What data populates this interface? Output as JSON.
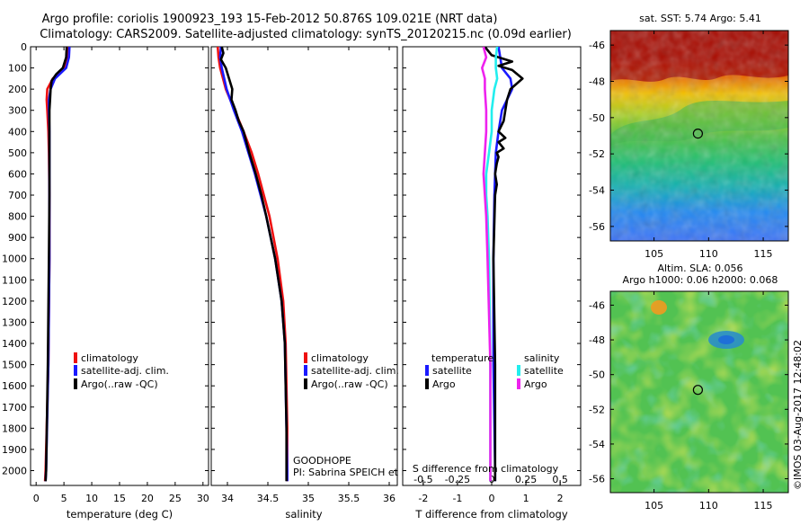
{
  "figure": {
    "title_line1": "Argo profile: coriolis 1900923_193 15-Feb-2012 50.876S 109.021E (NRT data)",
    "title_line2": "Climatology: CARS2009. Satellite-adjusted climatology: synTS_20120215.nc (0.09d earlier)",
    "side_label": "©IMOS 03-Aug-2017 12:48:02",
    "goodhope_label": "GOODHOPE",
    "pi_label": "PI: Sabrina SPEICH et Michel ARHAN"
  },
  "colors": {
    "climatology": "#ee1111",
    "satellite": "#1a1aff",
    "argo": "#000000",
    "salinity_satellite": "#22eeee",
    "salinity_argo": "#ee22ee"
  },
  "chart_data": [
    {
      "id": "temperature",
      "type": "line",
      "xlabel": "temperature (deg C)",
      "ylabel": "",
      "xlim": [
        -1,
        31
      ],
      "ylim": [
        2070,
        0
      ],
      "xticks": [
        0,
        5,
        10,
        15,
        20,
        25,
        30
      ],
      "yticks": [
        0,
        100,
        200,
        300,
        400,
        500,
        600,
        700,
        800,
        900,
        1000,
        1100,
        1200,
        1300,
        1400,
        1500,
        1600,
        1700,
        1800,
        1900,
        2000
      ],
      "legend": [
        "climatology",
        "satellite-adj. clim.",
        "Argo(..raw -QC)"
      ],
      "series": [
        {
          "name": "climatology",
          "depth": [
            0,
            50,
            100,
            150,
            200,
            250,
            300,
            400,
            500,
            700,
            1000,
            1500,
            2000,
            2050
          ],
          "values": [
            5.8,
            5.7,
            5.2,
            3.0,
            2.0,
            1.9,
            2.0,
            2.2,
            2.3,
            2.4,
            2.4,
            2.2,
            1.7,
            1.6
          ]
        },
        {
          "name": "satellite",
          "depth": [
            0,
            50,
            100,
            150,
            200,
            250,
            300,
            400,
            500,
            700,
            1000,
            1500,
            2000,
            2050
          ],
          "values": [
            6.0,
            5.9,
            5.4,
            3.4,
            2.6,
            2.3,
            2.3,
            2.4,
            2.4,
            2.4,
            2.4,
            2.2,
            1.8,
            1.7
          ]
        },
        {
          "name": "Argo",
          "depth": [
            0,
            50,
            100,
            130,
            160,
            200,
            250,
            300,
            400,
            500,
            700,
            1000,
            1500,
            2000,
            2050
          ],
          "values": [
            5.5,
            5.4,
            4.8,
            3.6,
            2.8,
            2.6,
            2.5,
            2.4,
            2.4,
            2.4,
            2.4,
            2.3,
            2.1,
            1.8,
            1.7
          ]
        }
      ]
    },
    {
      "id": "salinity",
      "type": "line",
      "xlabel": "salinity",
      "ylabel": "",
      "xlim": [
        33.8,
        36.1
      ],
      "ylim": [
        2070,
        0
      ],
      "xticks": [
        34,
        34.5,
        35,
        35.5,
        36
      ],
      "xticklabels": [
        "34",
        "34.5",
        "35",
        "35.5",
        "36"
      ],
      "legend": [
        "climatology",
        "satellite-adj. clim.",
        "Argo(..raw -QC)"
      ],
      "series": [
        {
          "name": "climatology",
          "depth": [
            0,
            50,
            100,
            200,
            300,
            400,
            500,
            600,
            700,
            800,
            1000,
            1200,
            1400,
            1600,
            1800,
            2000,
            2050
          ],
          "values": [
            33.88,
            33.89,
            33.91,
            33.98,
            34.09,
            34.2,
            34.3,
            34.38,
            34.45,
            34.52,
            34.62,
            34.69,
            34.72,
            34.73,
            34.74,
            34.74,
            34.74
          ]
        },
        {
          "name": "satellite",
          "depth": [
            0,
            50,
            100,
            200,
            300,
            400,
            500,
            600,
            700,
            800,
            1000,
            1200,
            1400,
            1600,
            1800,
            2000,
            2050
          ],
          "values": [
            33.92,
            33.91,
            33.93,
            33.99,
            34.08,
            34.18,
            34.26,
            34.34,
            34.41,
            34.48,
            34.59,
            34.67,
            34.71,
            34.72,
            34.73,
            34.74,
            34.74
          ]
        },
        {
          "name": "Argo",
          "depth": [
            0,
            30,
            60,
            100,
            150,
            200,
            250,
            300,
            350,
            400,
            500,
            600,
            700,
            800,
            1000,
            1200,
            1400,
            1600,
            1800,
            2000,
            2050
          ],
          "values": [
            33.93,
            33.95,
            33.92,
            33.98,
            34.02,
            34.06,
            34.05,
            34.1,
            34.14,
            34.2,
            34.27,
            34.35,
            34.42,
            34.48,
            34.59,
            34.67,
            34.71,
            34.72,
            34.73,
            34.73,
            34.73
          ]
        }
      ]
    },
    {
      "id": "difference",
      "type": "line",
      "xlabel": "T difference from climatology",
      "top_xlabel": "S difference from climatology",
      "xlim": [
        -2.6,
        2.6
      ],
      "ylim": [
        2070,
        0
      ],
      "xticks": [
        -2,
        -1,
        0,
        1,
        2
      ],
      "top_xticks": [
        -0.5,
        -0.25,
        0,
        0.25,
        0.5
      ],
      "top_xticklabels": [
        "-0.5",
        "-0.25",
        "0",
        "0.25",
        "0.5"
      ],
      "top_xlim": [
        -0.65,
        0.65
      ],
      "legend": {
        "temperature_header": "temperature",
        "salinity_header": "salinity",
        "satellite": "satellite",
        "argo": "Argo"
      },
      "series": [
        {
          "name": "T satellite",
          "depth": [
            0,
            50,
            100,
            150,
            200,
            250,
            300,
            400,
            500,
            700,
            1000,
            1500,
            2000,
            2050
          ],
          "values": [
            0.2,
            0.25,
            0.3,
            0.55,
            0.6,
            0.45,
            0.3,
            0.2,
            0.12,
            0.08,
            0.05,
            0.05,
            0.1,
            0.1
          ]
        },
        {
          "name": "T Argo",
          "depth": [
            0,
            40,
            70,
            90,
            110,
            150,
            200,
            250,
            300,
            350,
            400,
            430,
            450,
            480,
            500,
            520,
            550,
            600,
            650,
            700,
            1000,
            1500,
            2000,
            2050
          ],
          "values": [
            -0.2,
            0.0,
            0.6,
            0.2,
            0.6,
            0.9,
            0.55,
            0.45,
            0.4,
            0.35,
            0.2,
            0.4,
            0.2,
            0.35,
            0.15,
            0.2,
            0.15,
            0.1,
            0.15,
            0.1,
            0.05,
            0.1,
            0.1,
            0.1
          ]
        },
        {
          "name": "S satellite",
          "depth": [
            0,
            50,
            100,
            150,
            200,
            300,
            400,
            500,
            600,
            700,
            800,
            1000,
            1500,
            2000,
            2050
          ],
          "values": [
            0.04,
            0.03,
            0.03,
            0.04,
            0.02,
            0.0,
            0.0,
            -0.02,
            -0.04,
            -0.04,
            -0.03,
            -0.02,
            -0.01,
            -0.01,
            -0.01
          ]
        },
        {
          "name": "S Argo",
          "depth": [
            0,
            50,
            100,
            150,
            200,
            300,
            400,
            500,
            600,
            700,
            800,
            1000,
            1500,
            2000,
            2050
          ],
          "values": [
            -0.06,
            -0.04,
            -0.07,
            -0.05,
            -0.05,
            -0.04,
            -0.04,
            -0.05,
            -0.06,
            -0.05,
            -0.04,
            -0.03,
            -0.01,
            -0.01,
            -0.01
          ]
        }
      ]
    },
    {
      "id": "sst_map",
      "type": "heatmap",
      "title": "sat. SST: 5.74  Argo: 5.41",
      "xticks": [
        105,
        110,
        115
      ],
      "yticks": [
        -46,
        -48,
        -50,
        -52,
        -54,
        -56
      ],
      "xlim": [
        101,
        117.3
      ],
      "ylim": [
        -45.2,
        -56.8
      ],
      "marker": {
        "lon": 109.02,
        "lat": -50.88
      }
    },
    {
      "id": "sla_map",
      "type": "heatmap",
      "title_line1": "Altim. SLA: 0.056",
      "title_line2": "Argo h1000: 0.06 h2000: 0.068",
      "xticks": [
        105,
        110,
        115
      ],
      "yticks": [
        -46,
        -48,
        -50,
        -52,
        -54,
        -56
      ],
      "xlim": [
        101,
        117.3
      ],
      "ylim": [
        -45.2,
        -56.8
      ],
      "marker": {
        "lon": 109.02,
        "lat": -50.88
      }
    }
  ]
}
